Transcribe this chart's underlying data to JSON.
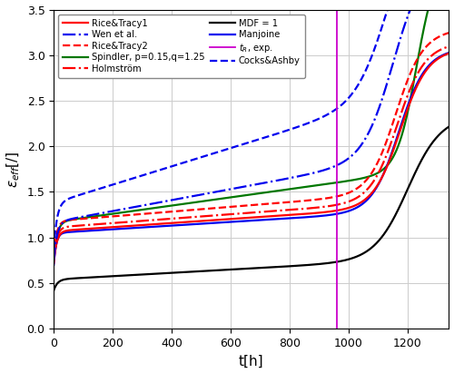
{
  "title": "",
  "xlabel": "t[h]",
  "ylabel": "$\\epsilon_{eff}$[/]",
  "xlim": [
    0,
    1340
  ],
  "ylim": [
    0,
    3.5
  ],
  "xticks": [
    0,
    200,
    400,
    600,
    800,
    1000,
    1200
  ],
  "yticks": [
    0,
    0.5,
    1.0,
    1.5,
    2.0,
    2.5,
    3.0,
    3.5
  ],
  "vline_x": 960,
  "vline_color": "#CC00CC",
  "figsize": [
    5.0,
    4.11
  ],
  "dpi": 100,
  "legend_fontsize": 7.2,
  "axis_label_fontsize": 11,
  "tick_fontsize": 9,
  "grid": true,
  "lines": {
    "Rice_Tracy1": {
      "color": "#FF0000",
      "linestyle": "-",
      "linewidth": 1.6,
      "label": "Rice&Tracy1"
    },
    "Rice_Tracy2": {
      "color": "#FF0000",
      "linestyle": "--",
      "linewidth": 1.6,
      "label": "Rice&Tracy2"
    },
    "Holmstrom": {
      "color": "#FF0000",
      "linestyle": "-.",
      "linewidth": 1.6,
      "label": "Holmström"
    },
    "Manjoine": {
      "color": "#0000EE",
      "linestyle": "-",
      "linewidth": 1.6,
      "label": "Manjoine"
    },
    "Cocks_Ashby": {
      "color": "#0000EE",
      "linestyle": "--",
      "linewidth": 1.6,
      "label": "Cocks&Ashby"
    },
    "Wen": {
      "color": "#0000EE",
      "linestyle": "-.",
      "linewidth": 1.6,
      "label": "Wen et al."
    },
    "Spindler": {
      "color": "#007700",
      "linestyle": "-",
      "linewidth": 1.6,
      "label": "Spindler, p=0.15,q=1.25"
    },
    "MDF": {
      "color": "#000000",
      "linestyle": "-",
      "linewidth": 1.6,
      "label": "MDF = 1"
    },
    "tR": {
      "color": "#CC00CC",
      "linestyle": "-",
      "linewidth": 1.3,
      "label": "$t_R$, exp."
    }
  }
}
